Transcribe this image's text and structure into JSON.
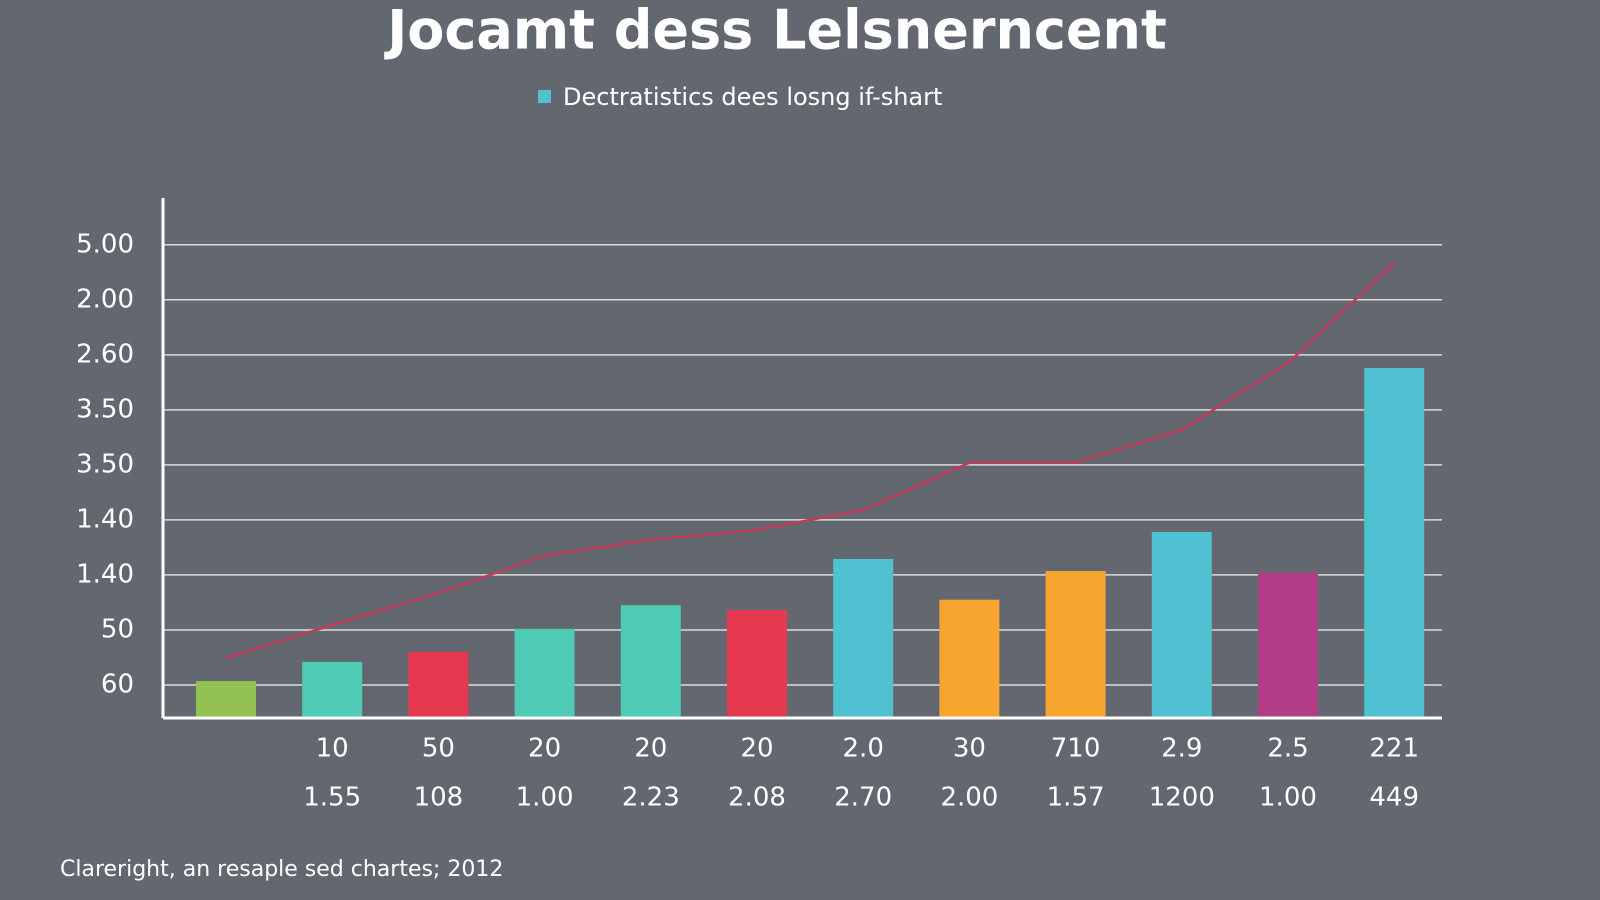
{
  "chart_data": {
    "type": "bar",
    "title": "Jocamt dess Lelsnerncent",
    "footer": "Clareright, an resaple sed chartes; 2012",
    "categories": [
      null,
      "10",
      "50",
      "20",
      "20",
      "20",
      "2.0",
      "30",
      "710",
      "2.9",
      "2.5",
      "221"
    ],
    "categories_2": [
      null,
      "1.55",
      "108",
      "1.00",
      "2.23",
      "2.08",
      "2.70",
      "2.00",
      "1.57",
      "1200",
      "1.00",
      "449"
    ],
    "series": [
      {
        "name": "Dectratistics dees losng if-shart",
        "type": "bar",
        "color": "#4fc1d0",
        "colors": [
          "#93c152",
          "#4ecab5",
          "#e63950",
          "#4ecab5",
          "#4ecab5",
          "#e63950",
          "#4fc1d0",
          "#f6a52f",
          "#f6a52f",
          "#4fc1d0",
          "#b23c86",
          "#4fc1d0"
        ],
        "values": [
          1.07,
          1.42,
          1.6,
          2.02,
          2.45,
          2.36,
          3.29,
          2.55,
          3.07,
          3.78,
          3.04,
          6.76
        ]
      },
      {
        "type": "line",
        "color": "#c23a5c",
        "values": [
          1.49,
          2.09,
          2.67,
          3.35,
          3.64,
          3.82,
          4.18,
          5.04,
          5.04,
          5.64,
          6.85,
          8.67
        ]
      }
    ],
    "ylim": [
      0.4,
      9.85
    ],
    "yticks": [
      {
        "value": 1,
        "label": "60"
      },
      {
        "value": 2,
        "label": "50"
      },
      {
        "value": 3,
        "label": "1.40"
      },
      {
        "value": 4,
        "label": "1.40"
      },
      {
        "value": 5,
        "label": "3.50"
      },
      {
        "value": 6,
        "label": "3.50"
      },
      {
        "value": 7,
        "label": "2.60"
      },
      {
        "value": 8,
        "label": "2.00"
      },
      {
        "value": 9,
        "label": "5.00"
      }
    ],
    "grid": true
  }
}
